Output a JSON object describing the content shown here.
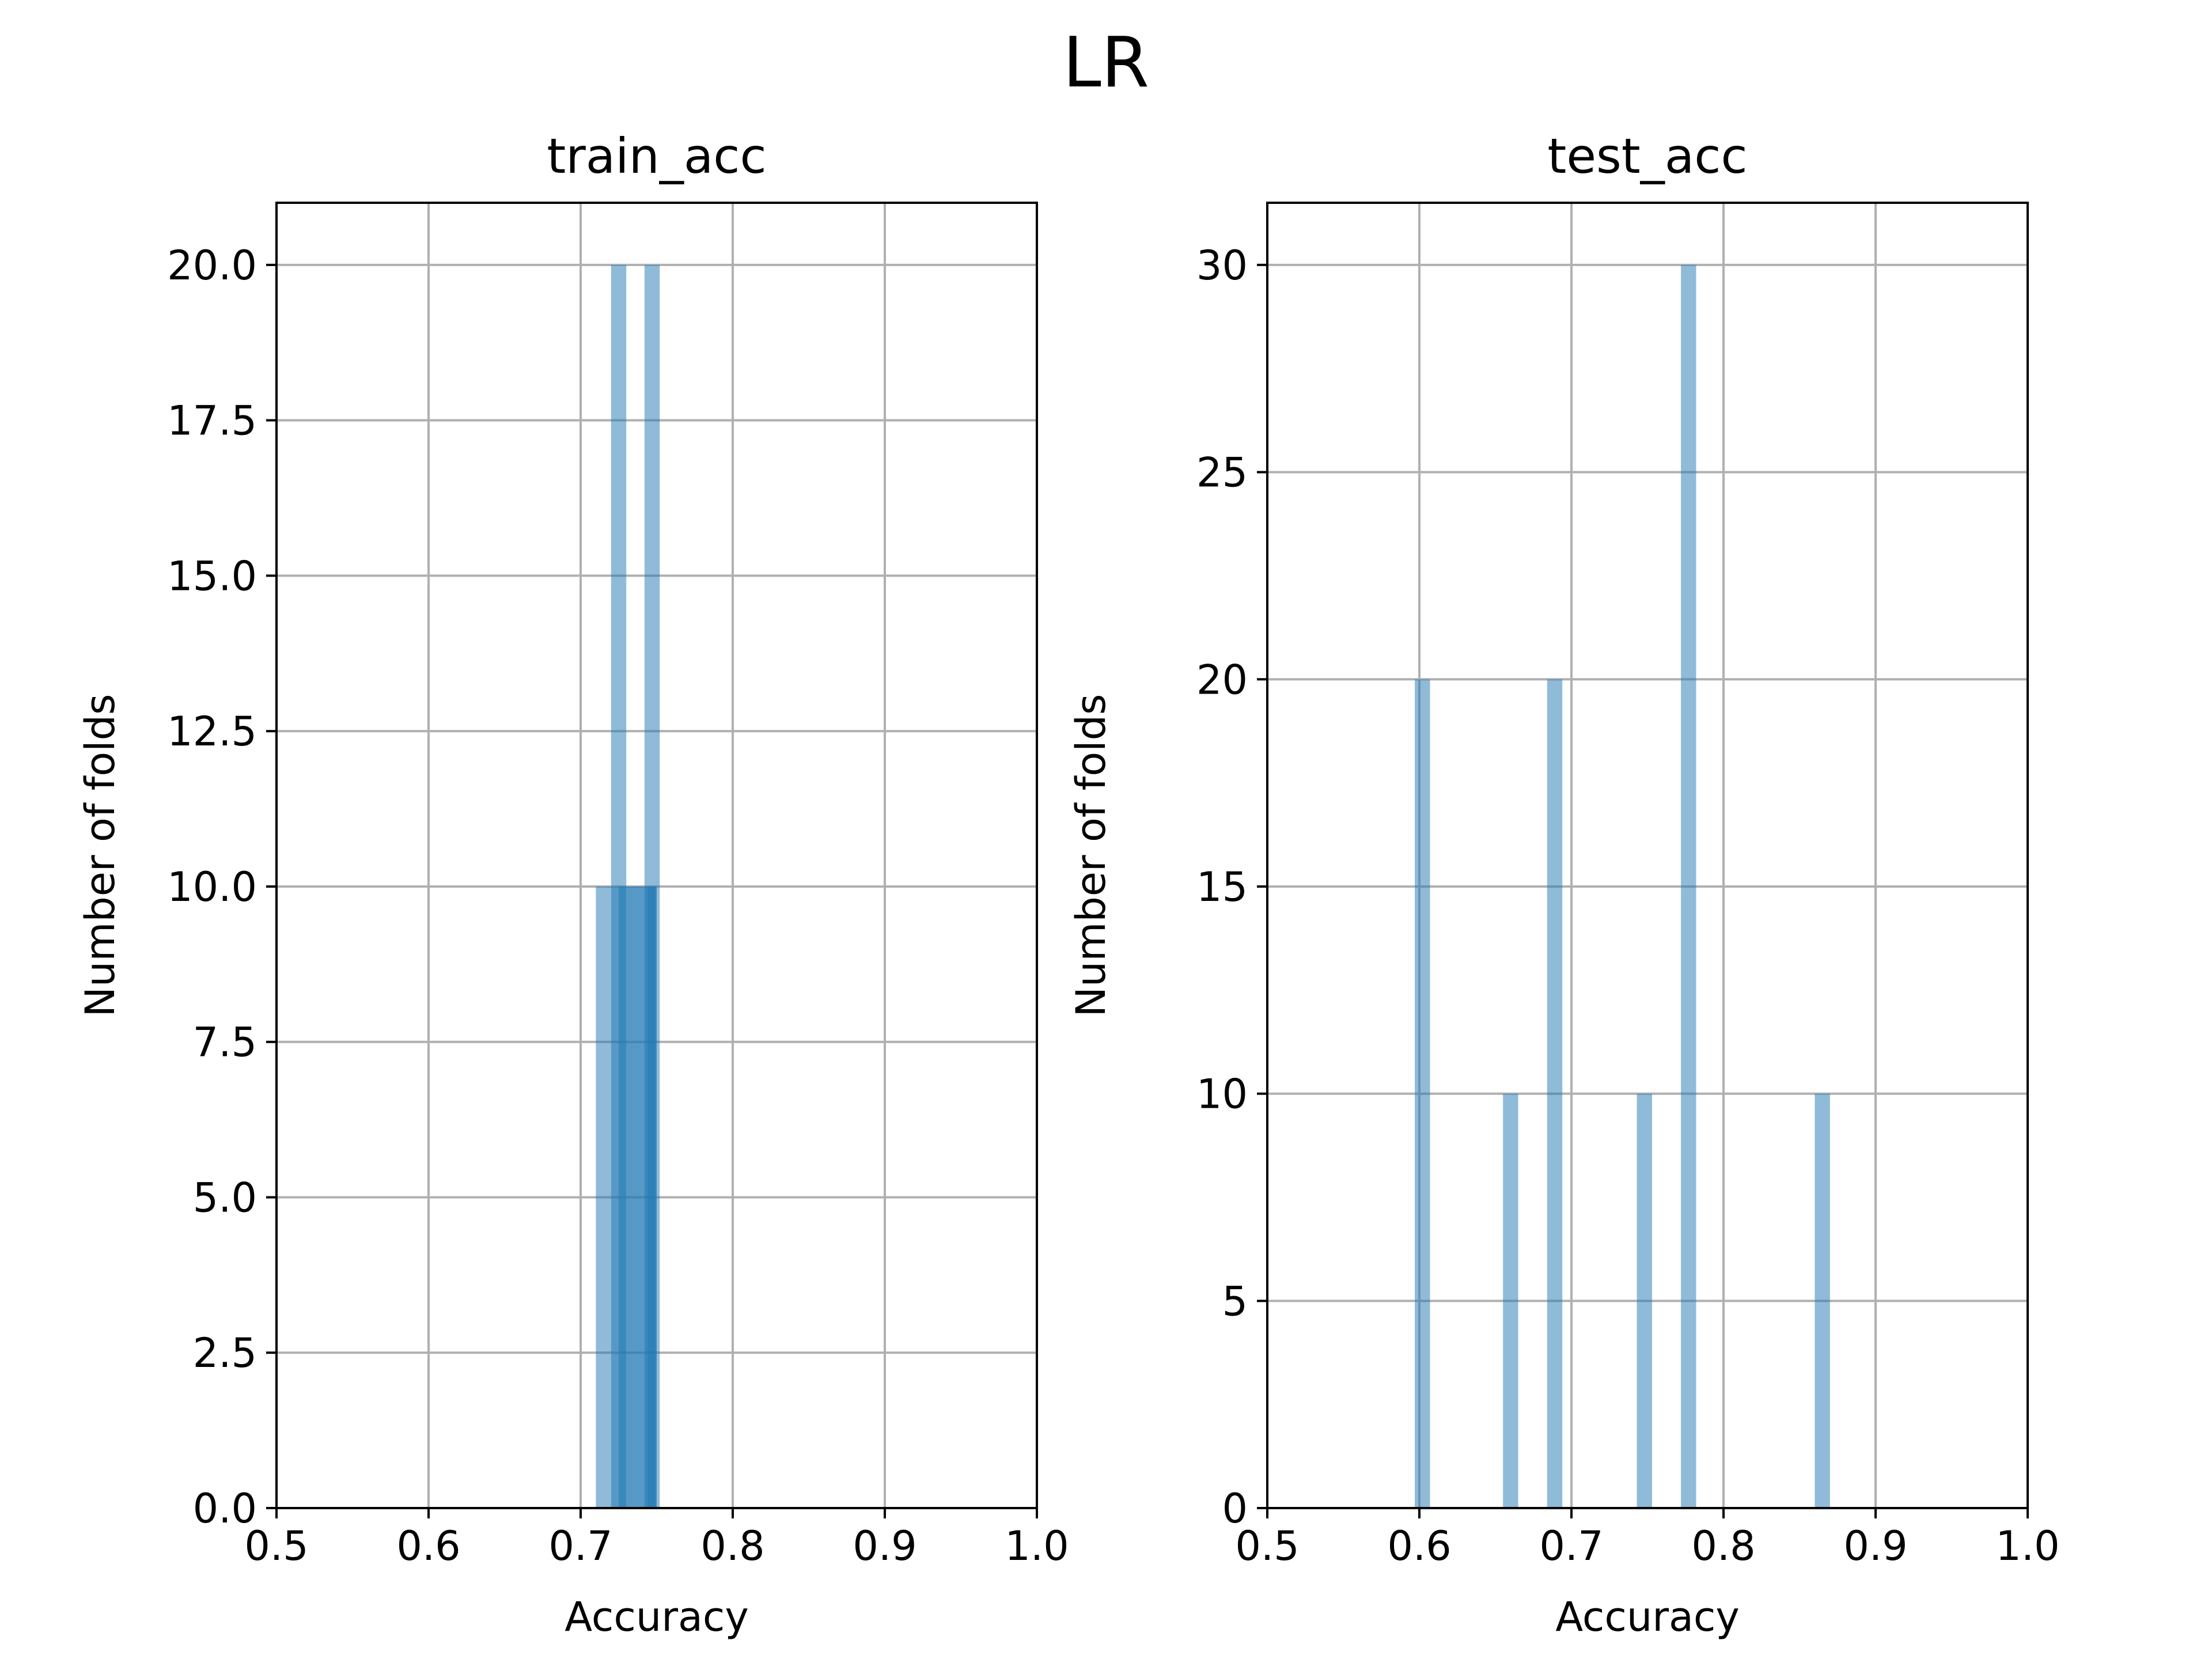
{
  "figure": {
    "suptitle": "LR"
  },
  "style": {
    "bar_color": "#1f77b4",
    "bar_alpha": 0.5,
    "grid_color": "#b0b0b0"
  },
  "chart_data": [
    {
      "type": "bar",
      "title": "train_acc",
      "xlabel": "Accuracy",
      "ylabel": "Number of folds",
      "xlim": [
        0.5,
        1.0
      ],
      "ylim": [
        0,
        21
      ],
      "grid": true,
      "xticks": [
        "0.5",
        "0.6",
        "0.7",
        "0.8",
        "0.9",
        "1.0"
      ],
      "xtick_values": [
        0.5,
        0.6,
        0.7,
        0.8,
        0.9,
        1.0
      ],
      "yticks": [
        "0.0",
        "2.5",
        "5.0",
        "7.5",
        "10.0",
        "12.5",
        "15.0",
        "17.5",
        "20.0"
      ],
      "ytick_values": [
        0,
        2.5,
        5,
        7.5,
        10,
        12.5,
        15,
        17.5,
        20
      ],
      "bars": [
        {
          "x0": 0.71,
          "x1": 0.72,
          "count": 10
        },
        {
          "x0": 0.72,
          "x1": 0.73,
          "count": 10
        },
        {
          "x0": 0.725,
          "x1": 0.735,
          "count": 10
        },
        {
          "x0": 0.73,
          "x1": 0.74,
          "count": 10
        },
        {
          "x0": 0.735,
          "x1": 0.745,
          "count": 10
        },
        {
          "x0": 0.74,
          "x1": 0.75,
          "count": 10
        },
        {
          "x0": 0.744,
          "x1": 0.749,
          "count": 10
        },
        {
          "x0": 0.745,
          "x1": 0.75,
          "count": 10
        },
        {
          "x0": 0.72,
          "x1": 0.73,
          "count": 20
        },
        {
          "x0": 0.742,
          "x1": 0.752,
          "count": 20
        }
      ]
    },
    {
      "type": "bar",
      "title": "test_acc",
      "xlabel": "Accuracy",
      "ylabel": "Number of folds",
      "xlim": [
        0.5,
        1.0
      ],
      "ylim": [
        0,
        31.5
      ],
      "grid": true,
      "xticks": [
        "0.5",
        "0.6",
        "0.7",
        "0.8",
        "0.9",
        "1.0"
      ],
      "xtick_values": [
        0.5,
        0.6,
        0.7,
        0.8,
        0.9,
        1.0
      ],
      "yticks": [
        "0",
        "5",
        "10",
        "15",
        "20",
        "25",
        "30"
      ],
      "ytick_values": [
        0,
        5,
        10,
        15,
        20,
        25,
        30
      ],
      "bars": [
        {
          "x0": 0.597,
          "x1": 0.607,
          "count": 20
        },
        {
          "x0": 0.655,
          "x1": 0.665,
          "count": 10
        },
        {
          "x0": 0.684,
          "x1": 0.694,
          "count": 20
        },
        {
          "x0": 0.743,
          "x1": 0.753,
          "count": 10
        },
        {
          "x0": 0.772,
          "x1": 0.782,
          "count": 30
        },
        {
          "x0": 0.86,
          "x1": 0.87,
          "count": 10
        }
      ]
    }
  ]
}
